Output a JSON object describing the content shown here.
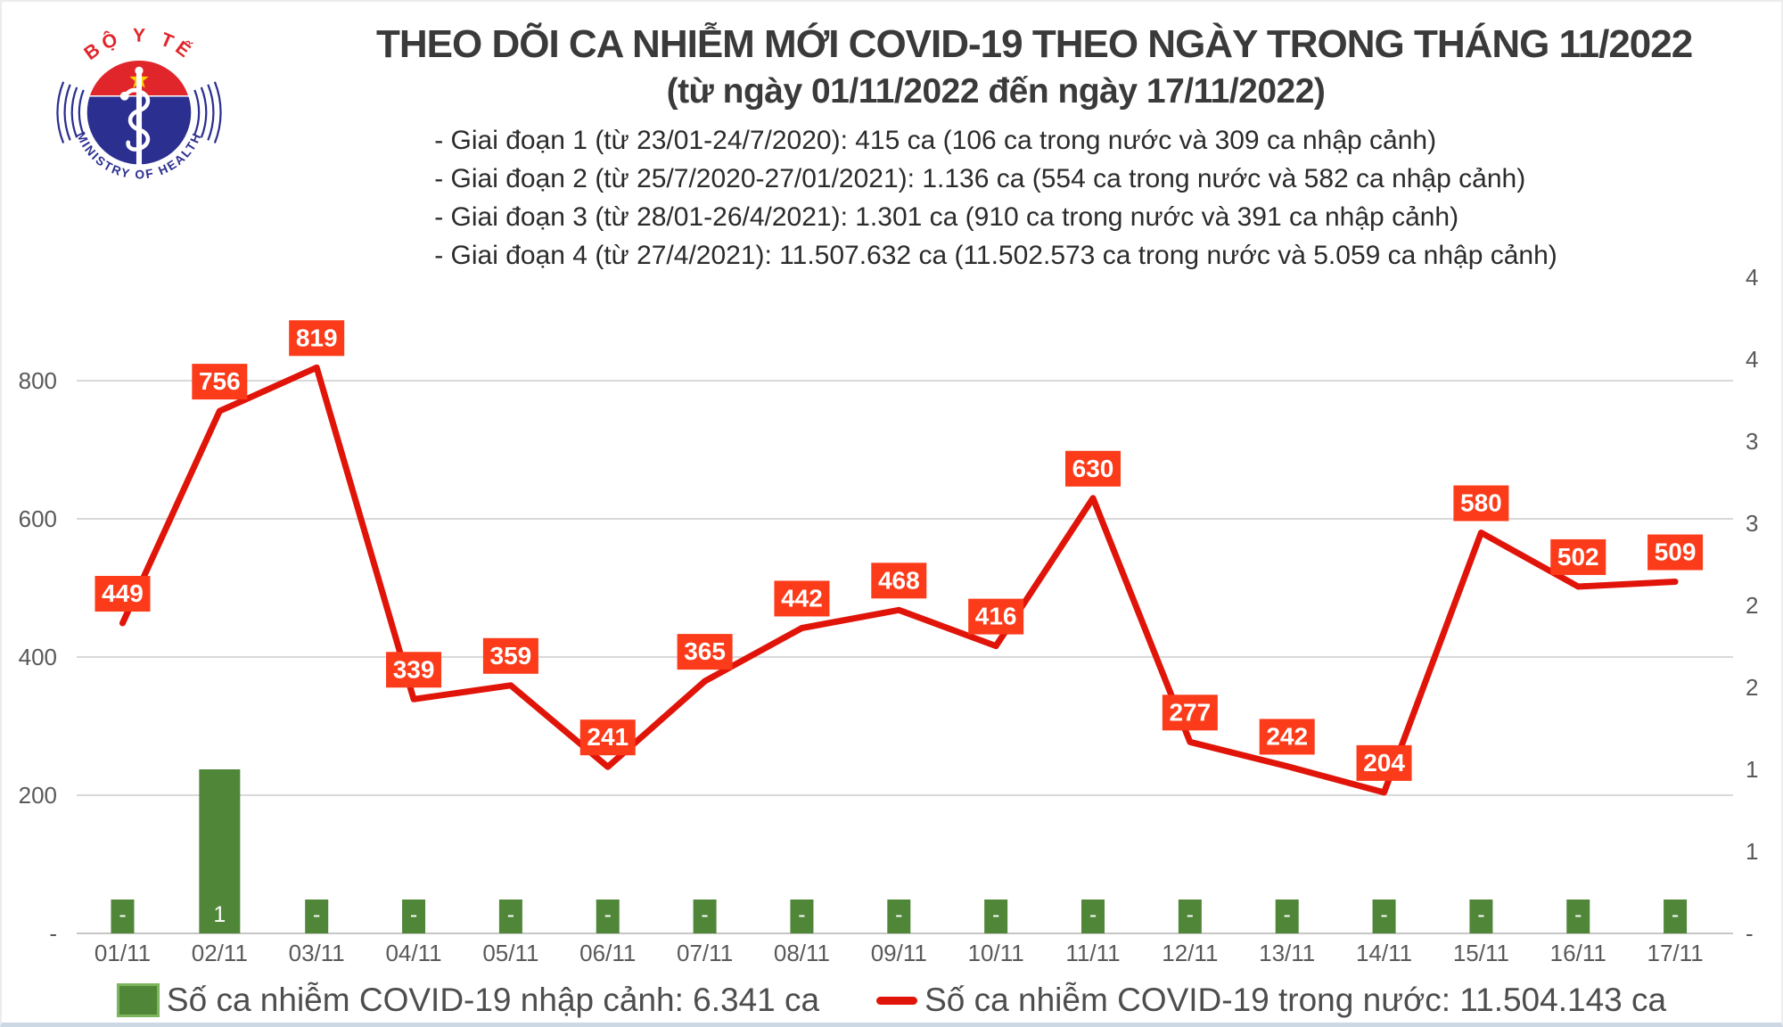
{
  "logo": {
    "top_text": "BỘ Y TẾ",
    "bottom_text": "MINISTRY OF HEALTH"
  },
  "header": {
    "title": "THEO DÕI CA NHIỄM MỚI COVID-19 THEO NGÀY TRONG THÁNG 11/2022",
    "subtitle": "(từ ngày 01/11/2022 đến ngày 17/11/2022)",
    "notes": [
      "- Giai đoạn 1 (từ 23/01-24/7/2020): 415 ca (106 ca trong nước và 309 ca nhập cảnh)",
      "- Giai đoạn 2 (từ 25/7/2020-27/01/2021): 1.136 ca (554 ca trong nước và 582 ca nhập cảnh)",
      "- Giai đoạn 3 (từ 28/01-26/4/2021): 1.301 ca (910 ca trong nước và 391 ca nhập cảnh)",
      "- Giai đoạn 4 (từ 27/4/2021): 11.507.632 ca (11.502.573 ca trong nước và 5.059 ca nhập cảnh)"
    ]
  },
  "chart_data": {
    "type": "combo",
    "categories": [
      "01/11",
      "02/11",
      "03/11",
      "04/11",
      "05/11",
      "06/11",
      "07/11",
      "08/11",
      "09/11",
      "10/11",
      "11/11",
      "12/11",
      "13/11",
      "14/11",
      "15/11",
      "16/11",
      "17/11"
    ],
    "series": [
      {
        "name": "Số ca nhiễm COVID-19 nhập cảnh: 6.341 ca",
        "type": "bar",
        "axis": "right",
        "values": [
          0,
          1,
          0,
          0,
          0,
          0,
          0,
          0,
          0,
          0,
          0,
          0,
          0,
          0,
          0,
          0,
          0
        ],
        "labels": [
          "-",
          "1",
          "-",
          "-",
          "-",
          "-",
          "-",
          "-",
          "-",
          "-",
          "-",
          "-",
          "-",
          "-",
          "-",
          "-",
          "-"
        ]
      },
      {
        "name": "Số ca nhiễm COVID-19 trong nước: 11.504.143 ca",
        "type": "line",
        "axis": "left",
        "values": [
          449,
          756,
          819,
          339,
          359,
          241,
          365,
          442,
          468,
          416,
          630,
          277,
          242,
          204,
          580,
          502,
          509
        ],
        "labels": [
          "449",
          "756",
          "819",
          "339",
          "359",
          "241",
          "365",
          "442",
          "468",
          "416",
          "630",
          "277",
          "242",
          "204",
          "580",
          "502",
          "509"
        ]
      }
    ],
    "left_axis": {
      "tick_labels": [
        "-",
        "200",
        "400",
        "600",
        "800"
      ],
      "tick_values": [
        0,
        200,
        400,
        600,
        800
      ],
      "range": [
        0,
        1032
      ],
      "grid": true
    },
    "right_axis": {
      "tick_labels": [
        "-",
        "1",
        "1",
        "2",
        "2",
        "3",
        "3",
        "4",
        "4"
      ],
      "tick_values": [
        0,
        0.5,
        1,
        1.5,
        2,
        2.5,
        3,
        3.5,
        4
      ],
      "range": [
        0,
        4
      ],
      "grid": false
    },
    "legend_position": "bottom",
    "colors": {
      "line": "#e01408",
      "data_label_box": "#fb3b1a",
      "data_label_text": "#ffffff",
      "bar": "#4f8638",
      "bar_legend_border": "#7cb55e",
      "bar_label_text": "#ffffff",
      "gridline": "#d9d9d9",
      "axis_line": "#c6c6c6",
      "axis_text": "#595959"
    }
  },
  "logo_colors": {
    "red": "#e0262b",
    "blue": "#2b2f90",
    "star_yellow": "#ffd200"
  }
}
